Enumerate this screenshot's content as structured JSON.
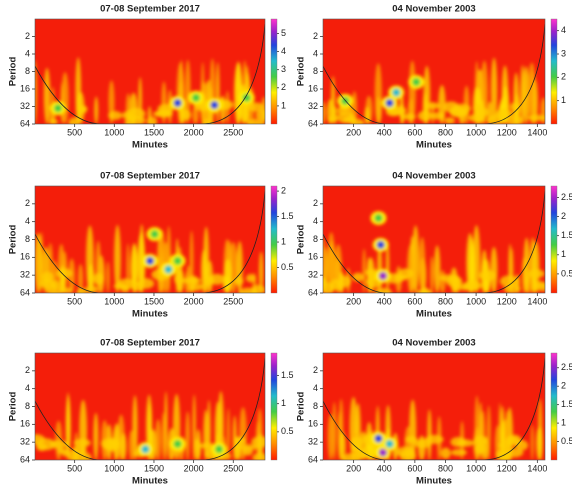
{
  "chart_data": [
    {
      "type": "heatmap",
      "title": "07-08 September 2017",
      "xlabel": "Minutes",
      "ylabel": "Period",
      "xlim": [
        0,
        2900
      ],
      "xticks": [
        500,
        1000,
        1500,
        2000,
        2500
      ],
      "ylim": [
        1,
        64
      ],
      "yticks": [
        2,
        4,
        8,
        16,
        32,
        64
      ],
      "ylog": true,
      "yinverted": true,
      "clim": [
        0,
        5.8
      ],
      "cticks": [
        1,
        2,
        3,
        4,
        5
      ]
    },
    {
      "type": "heatmap",
      "title": "04 November 2003",
      "xlabel": "Minutes",
      "ylabel": "Period",
      "xlim": [
        0,
        1450
      ],
      "xticks": [
        200,
        400,
        600,
        800,
        1000,
        1200,
        1400
      ],
      "ylim": [
        1,
        64
      ],
      "yticks": [
        2,
        4,
        8,
        16,
        32,
        64
      ],
      "ylog": true,
      "yinverted": true,
      "clim": [
        0,
        4.5
      ],
      "cticks": [
        1,
        2,
        3,
        4
      ]
    },
    {
      "type": "heatmap",
      "title": "07-08 September 2017",
      "xlabel": "Minutes",
      "ylabel": "Period",
      "xlim": [
        0,
        2900
      ],
      "xticks": [
        500,
        1000,
        1500,
        2000,
        2500
      ],
      "ylim": [
        1,
        64
      ],
      "yticks": [
        2,
        4,
        8,
        16,
        32,
        64
      ],
      "ylog": true,
      "yinverted": true,
      "clim": [
        0,
        2.1
      ],
      "cticks": [
        0.5,
        1,
        1.5,
        2
      ]
    },
    {
      "type": "heatmap",
      "title": "04 November 2003",
      "xlabel": "Minutes",
      "ylabel": "Period",
      "xlim": [
        0,
        1450
      ],
      "xticks": [
        200,
        400,
        600,
        800,
        1000,
        1200,
        1400
      ],
      "ylim": [
        1,
        64
      ],
      "yticks": [
        2,
        4,
        8,
        16,
        32,
        64
      ],
      "ylog": true,
      "yinverted": true,
      "clim": [
        0,
        2.8
      ],
      "cticks": [
        0.5,
        1,
        1.5,
        2,
        2.5
      ]
    },
    {
      "type": "heatmap",
      "title": "07-08 September 2017",
      "xlabel": "Minutes",
      "ylabel": "Period",
      "xlim": [
        0,
        2900
      ],
      "xticks": [
        500,
        1000,
        1500,
        2000,
        2500
      ],
      "ylim": [
        1,
        64
      ],
      "yticks": [
        2,
        4,
        8,
        16,
        32,
        64
      ],
      "ylog": true,
      "yinverted": true,
      "clim": [
        0,
        1.9
      ],
      "cticks": [
        0.5,
        1,
        1.5
      ]
    },
    {
      "type": "heatmap",
      "title": "04 November 2003",
      "xlabel": "Minutes",
      "ylabel": "Period",
      "xlim": [
        0,
        1450
      ],
      "xticks": [
        200,
        400,
        600,
        800,
        1000,
        1200,
        1400
      ],
      "ylim": [
        1,
        64
      ],
      "yticks": [
        2,
        4,
        8,
        16,
        32,
        64
      ],
      "ylog": true,
      "yinverted": true,
      "clim": [
        0,
        2.9
      ],
      "cticks": [
        0.5,
        1,
        1.5,
        2,
        2.5
      ]
    }
  ]
}
